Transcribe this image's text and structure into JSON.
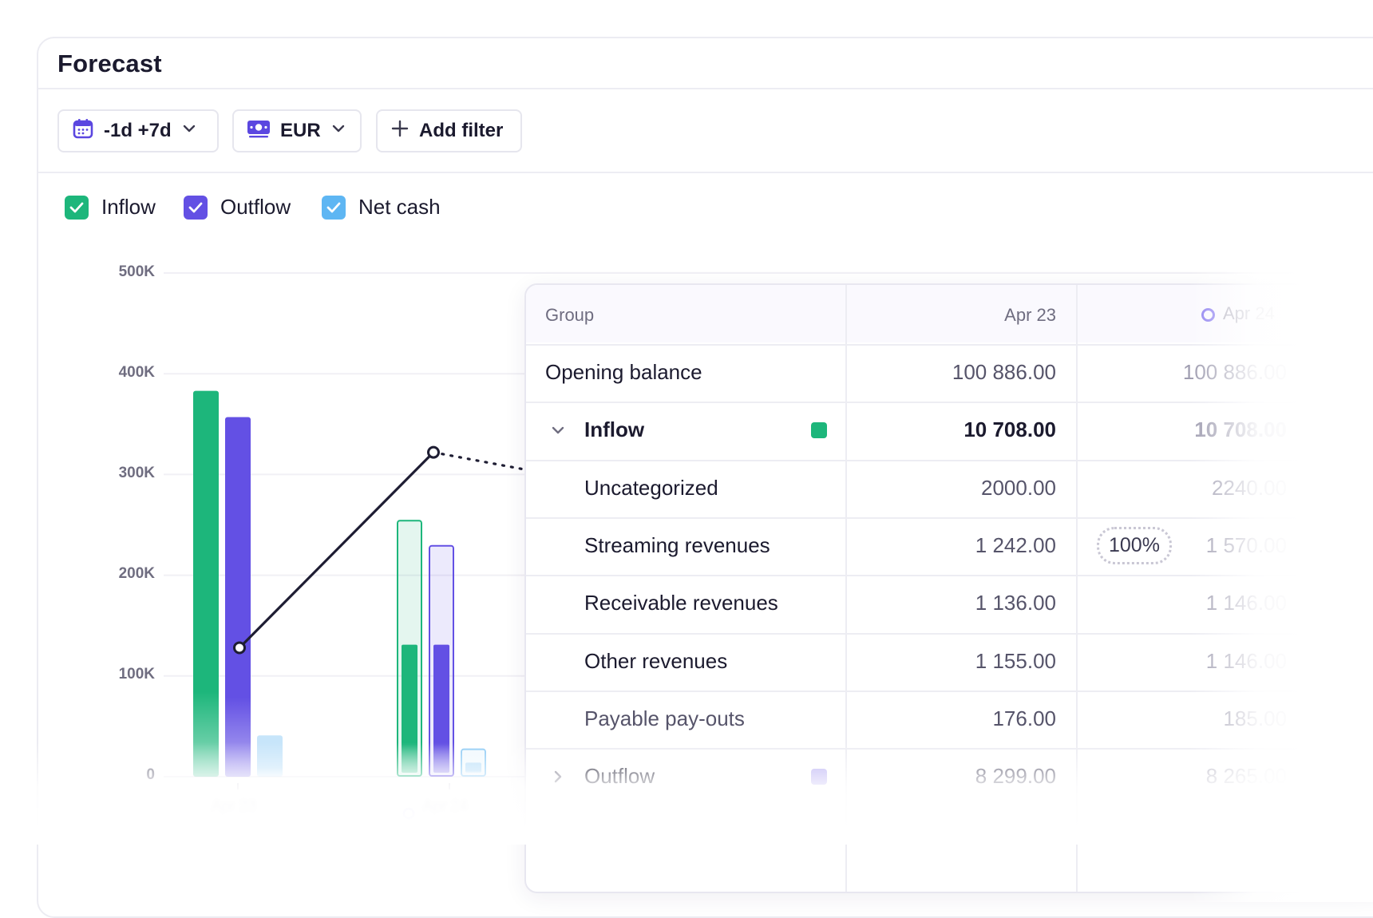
{
  "header": {
    "title": "Forecast"
  },
  "toolbar": {
    "period_label": "-1d +7d",
    "currency_label": "EUR",
    "add_filter_label": "Add filter"
  },
  "legend": [
    {
      "label": "Inflow",
      "checked": true,
      "color": "#1db67b"
    },
    {
      "label": "Outflow",
      "checked": true,
      "color": "#6350e4"
    },
    {
      "label": "Net cash",
      "checked": true,
      "color": "#5eb6f3"
    }
  ],
  "chart_data": {
    "type": "bar",
    "categories": [
      "Apr 23",
      "Apr 24"
    ],
    "y_ticks": [
      "500K",
      "400K",
      "300K",
      "200K",
      "100K",
      "0"
    ],
    "ylim": [
      0,
      500000
    ],
    "series": [
      {
        "name": "Inflow",
        "color": "#1db67b",
        "values": [
          383000,
          255000
        ],
        "actual_values": [
          383000,
          131000
        ]
      },
      {
        "name": "Outflow",
        "color": "#6350e4",
        "values": [
          357000,
          230000
        ],
        "actual_values": [
          357000,
          131000
        ]
      },
      {
        "name": "Net cash",
        "color": "#8fcbf5",
        "values": [
          41000,
          28000
        ],
        "actual_values": [
          41000,
          14000
        ]
      }
    ],
    "line": {
      "values": [
        128000,
        322000
      ]
    },
    "grid": true
  },
  "table": {
    "columns": [
      "Group",
      "Apr 23",
      "Apr 24"
    ],
    "rows": [
      {
        "label": "Opening balance",
        "apr23": "100 886.00",
        "apr24": "100 886.00"
      },
      {
        "label": "Inflow",
        "apr23": "10 708.00",
        "apr24": "10 708.00",
        "color": "#1db67b",
        "expanded": true
      },
      {
        "label": "Uncategorized",
        "apr23": "2000.00",
        "apr24": "2240.00"
      },
      {
        "label": "Streaming revenues",
        "apr23": "1 242.00",
        "apr24": "1 570.00",
        "badge": "100%"
      },
      {
        "label": "Receivable revenues",
        "apr23": "1 136.00",
        "apr24": "1 146.00"
      },
      {
        "label": "Other revenues",
        "apr23": "1 155.00",
        "apr24": "1 146.00"
      },
      {
        "label": "Payable pay-outs",
        "apr23": "176.00",
        "apr24": "185.00"
      },
      {
        "label": "Outflow",
        "apr23": "8 299.00",
        "apr24": "8 265.00",
        "color": "#b3a9f3"
      }
    ]
  }
}
